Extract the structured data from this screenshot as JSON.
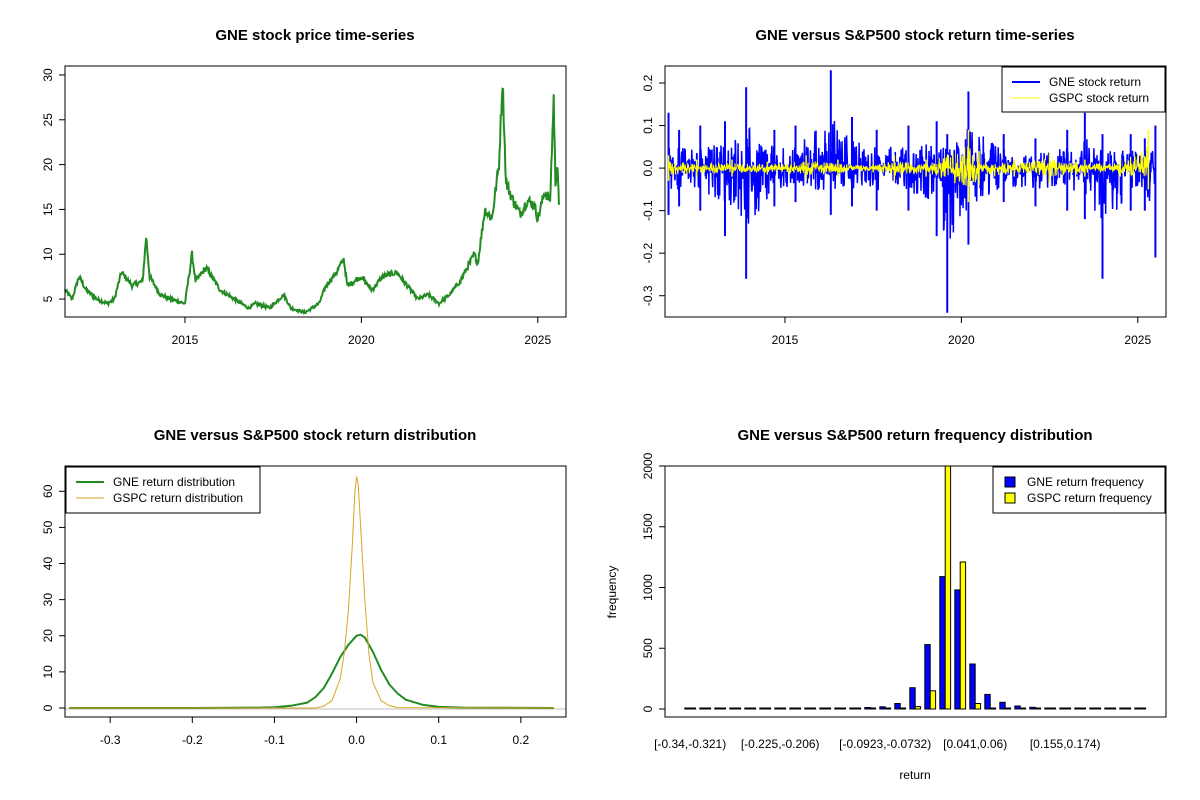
{
  "chart_data": [
    {
      "type": "line",
      "title": "GNE stock price time-series",
      "xlabel": "",
      "ylabel": "",
      "xlim": [
        2011.6,
        2025.8
      ],
      "ylim": [
        3,
        31
      ],
      "x_ticks": [
        2015,
        2020,
        2025
      ],
      "y_ticks": [
        5,
        10,
        15,
        20,
        25,
        30
      ],
      "series": [
        {
          "color": "#228B22",
          "x": [
            2011.6,
            2011.8,
            2012.0,
            2012.2,
            2012.5,
            2012.8,
            2013.0,
            2013.2,
            2013.5,
            2013.8,
            2013.9,
            2014.0,
            2014.3,
            2014.6,
            2015.0,
            2015.2,
            2015.3,
            2015.6,
            2016.0,
            2016.4,
            2016.8,
            2017.0,
            2017.4,
            2017.8,
            2018.0,
            2018.4,
            2018.8,
            2019.0,
            2019.3,
            2019.5,
            2019.6,
            2019.8,
            2020.0,
            2020.3,
            2020.6,
            2021.0,
            2021.3,
            2021.6,
            2021.9,
            2022.2,
            2022.5,
            2022.8,
            2023.0,
            2023.2,
            2023.3,
            2023.5,
            2023.7,
            2023.9,
            2024.0,
            2024.1,
            2024.3,
            2024.5,
            2024.7,
            2024.9,
            2025.0,
            2025.2,
            2025.35,
            2025.45,
            2025.5,
            2025.55,
            2025.6
          ],
          "y": [
            6.0,
            5.0,
            7.5,
            6.0,
            5.0,
            4.5,
            5.0,
            8.0,
            6.5,
            7.0,
            12.0,
            7.5,
            5.5,
            5.0,
            4.5,
            10.0,
            7.0,
            8.5,
            6.0,
            5.0,
            4.0,
            4.5,
            4.0,
            5.5,
            4.0,
            3.5,
            4.5,
            6.5,
            8.0,
            9.5,
            6.5,
            7.0,
            7.5,
            6.0,
            7.5,
            8.0,
            6.5,
            5.0,
            5.5,
            4.5,
            5.5,
            7.0,
            8.5,
            10.0,
            9.0,
            15.0,
            14.0,
            20.0,
            29.5,
            18.0,
            16.0,
            14.5,
            16.0,
            15.5,
            14.0,
            17.0,
            16.0,
            27.5,
            18.0,
            20.0,
            15.5
          ]
        }
      ]
    },
    {
      "type": "line",
      "title": "GNE versus S&P500 stock return time-series",
      "xlabel": "",
      "ylabel": "",
      "xlim": [
        2011.6,
        2025.8
      ],
      "ylim": [
        -0.35,
        0.24
      ],
      "x_ticks": [
        2015,
        2020,
        2025
      ],
      "y_ticks": [
        -0.3,
        -0.2,
        -0.1,
        0.0,
        0.1,
        0.2
      ],
      "legend": "top-right",
      "series": [
        {
          "name": "GNE stock return",
          "color": "#0000FF",
          "x": [
            2011.7,
            2012.0,
            2012.6,
            2013.3,
            2013.9,
            2014.7,
            2015.3,
            2016.3,
            2016.9,
            2017.6,
            2018.5,
            2019.3,
            2019.6,
            2020.2,
            2021.2,
            2022.1,
            2023.0,
            2023.5,
            2024.0,
            2024.8,
            2025.2,
            2025.5
          ],
          "y_high": [
            0.13,
            0.09,
            0.1,
            0.11,
            0.19,
            0.09,
            0.1,
            0.23,
            0.12,
            0.09,
            0.1,
            0.11,
            0.08,
            0.18,
            0.08,
            0.07,
            0.09,
            0.13,
            0.08,
            0.08,
            0.07,
            0.1
          ],
          "y_low": [
            -0.11,
            -0.09,
            -0.1,
            -0.16,
            -0.26,
            -0.09,
            -0.08,
            -0.11,
            -0.09,
            -0.1,
            -0.1,
            -0.16,
            -0.34,
            -0.18,
            -0.08,
            -0.09,
            -0.1,
            -0.12,
            -0.26,
            -0.1,
            -0.1,
            -0.21
          ]
        },
        {
          "name": "GSPC stock return",
          "color": "#FFFF00",
          "x": [
            2011.7,
            2012.5,
            2013.5,
            2014.5,
            2015.6,
            2016.5,
            2017.5,
            2018.1,
            2019.0,
            2020.2,
            2020.5,
            2021.5,
            2022.5,
            2023.5,
            2024.5,
            2025.3
          ],
          "y_high": [
            0.03,
            0.02,
            0.02,
            0.015,
            0.03,
            0.02,
            0.01,
            0.03,
            0.02,
            0.09,
            0.04,
            0.02,
            0.035,
            0.02,
            0.02,
            0.09
          ],
          "y_low": [
            -0.03,
            -0.02,
            -0.02,
            -0.015,
            -0.03,
            -0.02,
            -0.01,
            -0.03,
            -0.02,
            -0.08,
            -0.04,
            -0.02,
            -0.035,
            -0.02,
            -0.02,
            -0.05
          ]
        }
      ]
    },
    {
      "type": "line",
      "title": "GNE versus S&P500 stock return distribution",
      "xlabel": "",
      "ylabel": "",
      "xlim": [
        -0.355,
        0.255
      ],
      "ylim": [
        -2.5,
        67
      ],
      "x_ticks": [
        -0.3,
        -0.2,
        -0.1,
        0.0,
        0.1,
        0.2
      ],
      "y_ticks": [
        0,
        10,
        20,
        30,
        40,
        50,
        60
      ],
      "legend": "top-left",
      "series": [
        {
          "name": "GNE return distribution",
          "color": "#228B22",
          "x": [
            -0.35,
            -0.2,
            -0.12,
            -0.1,
            -0.08,
            -0.06,
            -0.05,
            -0.04,
            -0.03,
            -0.02,
            -0.01,
            0.0,
            0.005,
            0.01,
            0.02,
            0.03,
            0.04,
            0.05,
            0.06,
            0.08,
            0.1,
            0.13,
            0.24
          ],
          "y": [
            0.0,
            0.0,
            0.1,
            0.2,
            0.6,
            1.5,
            3.0,
            5.5,
            9.5,
            14.0,
            17.5,
            20.0,
            20.3,
            19.5,
            15.5,
            10.5,
            6.5,
            4.0,
            2.3,
            0.9,
            0.3,
            0.1,
            0.0
          ]
        },
        {
          "name": "GSPC return distribution",
          "color": "#DAA520",
          "x": [
            -0.35,
            -0.05,
            -0.04,
            -0.03,
            -0.02,
            -0.015,
            -0.01,
            -0.005,
            -0.002,
            0.0,
            0.002,
            0.005,
            0.01,
            0.015,
            0.02,
            0.03,
            0.04,
            0.05,
            0.24
          ],
          "y": [
            0.0,
            0.0,
            0.5,
            2.0,
            8.0,
            15.0,
            27.0,
            46.0,
            60.0,
            64.0,
            62.0,
            50.0,
            30.0,
            15.0,
            7.0,
            2.0,
            0.6,
            0.1,
            0.0
          ]
        }
      ]
    },
    {
      "type": "bar",
      "title": "GNE versus S&P500 return frequency distribution",
      "xlabel": "return",
      "ylabel": "frequency",
      "ylim": [
        0,
        2000
      ],
      "y_ticks": [
        0,
        500,
        1000,
        1500,
        2000
      ],
      "legend": "top-right",
      "x_tick_labels": [
        {
          "bin": 0,
          "label": "[-0.34,-0.321)"
        },
        {
          "bin": 6,
          "label": "[-0.225,-0.206)"
        },
        {
          "bin": 13,
          "label": "[-0.0923,-0.0732)"
        },
        {
          "bin": 19,
          "label": "[0.041,0.06)"
        },
        {
          "bin": 25,
          "label": "[0.155,0.174)"
        }
      ],
      "bins": 31,
      "series": [
        {
          "name": "GNE return frequency",
          "color": "#0000FF",
          "values": [
            1,
            1,
            1,
            1,
            2,
            2,
            2,
            2,
            3,
            4,
            6,
            8,
            12,
            18,
            45,
            175,
            530,
            1090,
            980,
            370,
            120,
            55,
            25,
            14,
            8,
            5,
            3,
            2,
            1,
            1,
            1
          ]
        },
        {
          "name": "GSPC return frequency",
          "color": "#FFFF00",
          "values": [
            0,
            0,
            0,
            0,
            0,
            0,
            0,
            0,
            0,
            0,
            0,
            0,
            0,
            0,
            2,
            20,
            150,
            2000,
            1210,
            45,
            3,
            1,
            0,
            0,
            0,
            0,
            0,
            0,
            0,
            0,
            0
          ]
        }
      ]
    }
  ]
}
